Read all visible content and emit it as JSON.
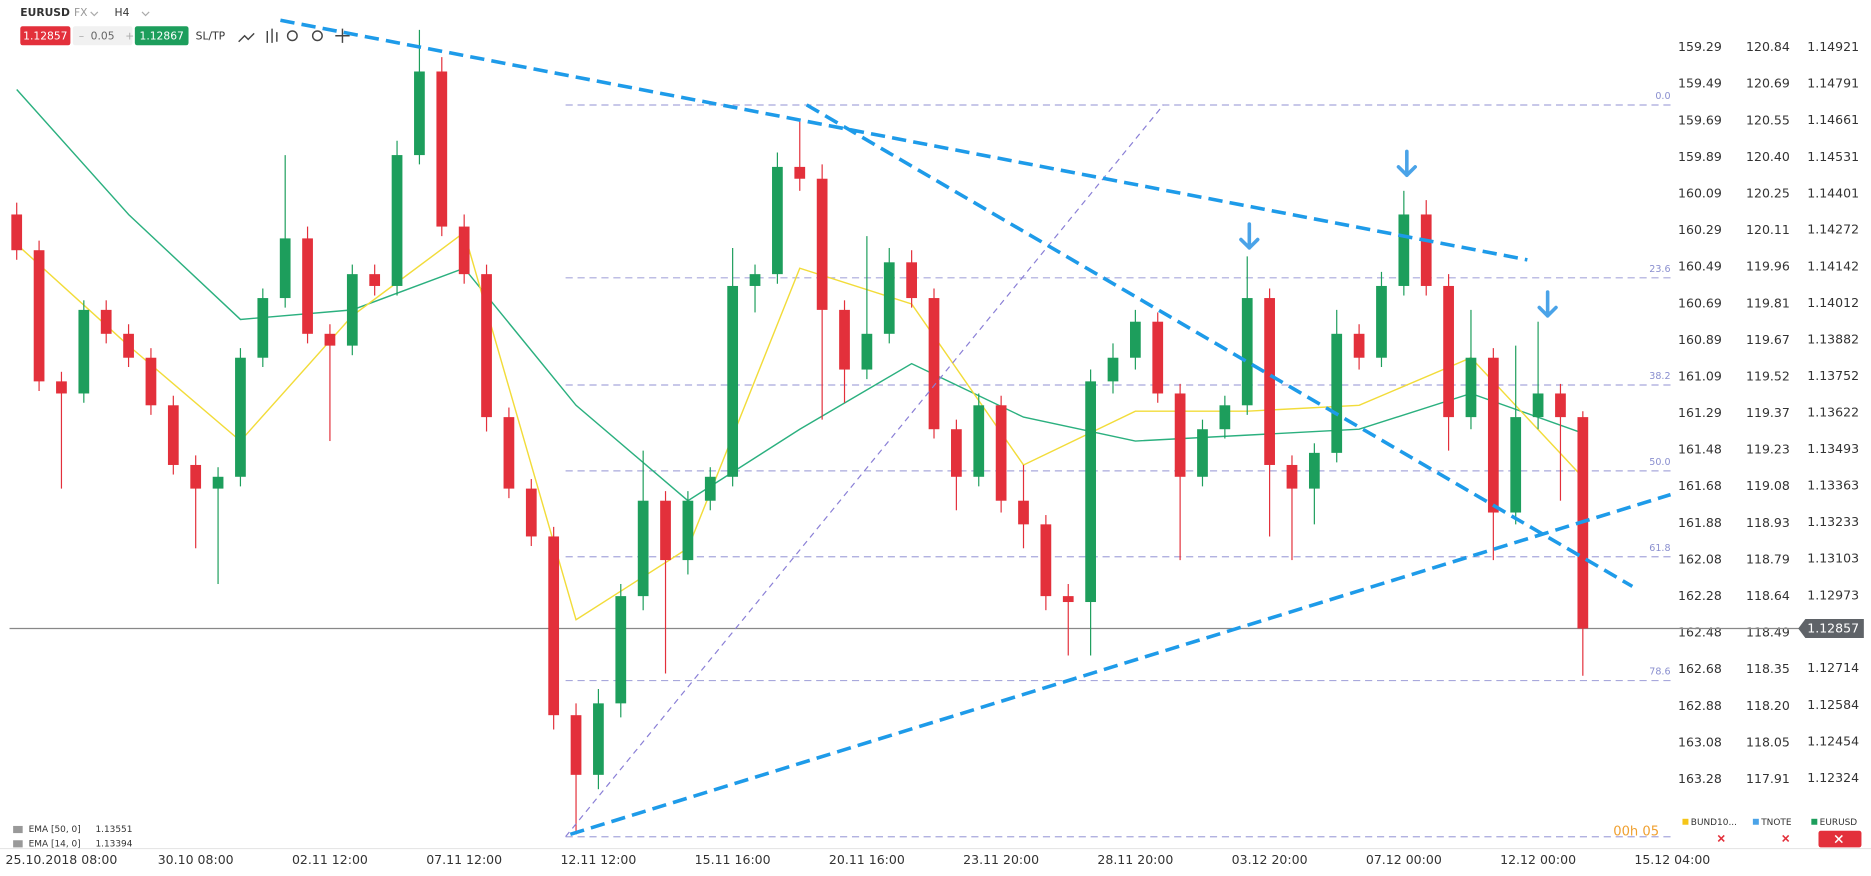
{
  "chart_data": {
    "type": "candlestick",
    "symbol": "EURUSD",
    "market": "FX",
    "timeframe": "H4",
    "current_price": 1.12857,
    "spread": 0.05,
    "ask": 1.12867,
    "sltp": "SL/TP",
    "timer": "00h 05",
    "categories": [
      null,
      null,
      "25.10.2018 08:00",
      null,
      null,
      null,
      null,
      null,
      "30.10 08:00",
      null,
      null,
      null,
      null,
      null,
      "02.11 12:00",
      null,
      null,
      null,
      null,
      null,
      "07.11 12:00",
      null,
      null,
      null,
      null,
      null,
      "12.11 12:00",
      null,
      null,
      null,
      null,
      null,
      "15.11 16:00",
      null,
      null,
      null,
      null,
      null,
      "20.11 16:00",
      null,
      null,
      null,
      null,
      null,
      "23.11 20:00",
      null,
      null,
      null,
      null,
      null,
      "28.11 20:00",
      null,
      null,
      null,
      null,
      null,
      "03.12 20:00",
      null,
      null,
      null,
      null,
      null,
      "07.12 00:00",
      null,
      null,
      null,
      null,
      null,
      "12.12 00:00",
      null,
      null,
      null,
      null,
      null,
      "15.12 04:00"
    ],
    "open": [
      1.14328,
      1.14201,
      1.13735,
      1.13692,
      1.13989,
      1.13904,
      1.13819,
      1.1365,
      1.13438,
      1.13354,
      1.13396,
      1.13819,
      1.14031,
      1.14243,
      1.13904,
      1.13862,
      1.14116,
      1.14074,
      1.14539,
      1.14836,
      1.14285,
      1.14116,
      1.13608,
      1.13354,
      1.13184,
      1.12549,
      1.12337,
      1.12591,
      1.12972,
      1.13311,
      1.131,
      1.13311,
      1.13396,
      1.14074,
      1.14116,
      1.14497,
      1.14455,
      1.13989,
      1.13777,
      1.13904,
      1.14158,
      1.14031,
      1.13565,
      1.13396,
      1.1365,
      1.13311,
      1.13227,
      1.12972,
      1.12951,
      1.13735,
      1.13819,
      1.13947,
      1.13692,
      1.13396,
      1.13565,
      1.1365,
      1.14031,
      1.13438,
      1.13354,
      1.13481,
      1.13904,
      1.13819,
      1.14074,
      1.14328,
      1.14074,
      1.13608,
      1.13819,
      1.13269,
      1.13608,
      1.13692,
      1.13608,
      null,
      null,
      null,
      null
    ],
    "high": [
      1.1437,
      1.14235,
      1.13769,
      1.14023,
      1.14023,
      1.13938,
      1.13853,
      1.13684,
      1.13472,
      1.1343,
      1.13853,
      1.14065,
      1.14539,
      1.14285,
      1.13938,
      1.1415,
      1.1415,
      1.1459,
      1.14984,
      1.14887,
      1.14328,
      1.1415,
      1.13642,
      1.13388,
      1.13218,
      1.12591,
      1.12642,
      1.13015,
      1.13489,
      1.13345,
      1.13345,
      1.1343,
      1.14209,
      1.1415,
      1.14548,
      1.14667,
      1.14506,
      1.14023,
      1.14251,
      1.14209,
      1.14201,
      1.14065,
      1.13599,
      1.13692,
      1.13684,
      1.13438,
      1.1326,
      1.13015,
      1.13777,
      1.1387,
      1.13989,
      1.1398,
      1.13726,
      1.13599,
      1.13684,
      1.14179,
      1.14065,
      1.13472,
      1.13515,
      1.13989,
      1.13938,
      1.14124,
      1.14412,
      1.14379,
      1.14116,
      1.13989,
      1.13853,
      1.13862,
      1.13947,
      1.13726,
      1.13629,
      null,
      null,
      null,
      null
    ],
    "low": [
      1.14167,
      1.13701,
      1.13354,
      1.13659,
      1.1387,
      1.13786,
      1.13616,
      1.13404,
      1.13142,
      1.13015,
      1.13362,
      1.13786,
      1.13997,
      1.1387,
      1.13523,
      1.13828,
      1.1404,
      1.1404,
      1.14506,
      1.14251,
      1.14082,
      1.13557,
      1.1332,
      1.1315,
      1.12498,
      1.12125,
      1.12286,
      1.12541,
      1.12922,
      1.12697,
      1.13049,
      1.13277,
      1.13362,
      1.1398,
      1.14082,
      1.14412,
      1.13599,
      1.13659,
      1.13743,
      1.1387,
      1.13997,
      1.13532,
      1.13277,
      1.13362,
      1.13269,
      1.13142,
      1.12922,
      1.12761,
      1.12761,
      1.13692,
      1.13777,
      1.13659,
      1.131,
      1.13362,
      1.13532,
      1.13616,
      1.13184,
      1.131,
      1.13227,
      1.13447,
      1.13777,
      1.13786,
      1.1404,
      1.1404,
      1.13489,
      1.13565,
      1.131,
      1.13227,
      1.13565,
      1.13311,
      1.12689,
      null,
      null,
      null,
      null
    ],
    "close": [
      1.14201,
      1.13735,
      1.13692,
      1.13989,
      1.13904,
      1.13819,
      1.1365,
      1.13438,
      1.13354,
      1.13396,
      1.13819,
      1.14031,
      1.14243,
      1.13904,
      1.13862,
      1.14116,
      1.14074,
      1.14539,
      1.14836,
      1.14285,
      1.14116,
      1.13608,
      1.13354,
      1.13184,
      1.12549,
      1.12337,
      1.12591,
      1.12972,
      1.13311,
      1.131,
      1.13311,
      1.13396,
      1.14074,
      1.14116,
      1.14497,
      1.14455,
      1.13989,
      1.13777,
      1.13904,
      1.14158,
      1.14031,
      1.13565,
      1.13396,
      1.1365,
      1.13311,
      1.13227,
      1.12972,
      1.12951,
      1.13735,
      1.13819,
      1.13947,
      1.13692,
      1.13396,
      1.13565,
      1.1365,
      1.14031,
      1.13438,
      1.13354,
      1.13481,
      1.13904,
      1.13819,
      1.14074,
      1.14328,
      1.14074,
      1.13608,
      1.13819,
      1.13269,
      1.13608,
      1.13692,
      1.13608,
      1.12857,
      null,
      null,
      null,
      null
    ],
    "up_color": "#1d9e5c",
    "down_color": "#e3303b",
    "ylim": [
      1.12075,
      1.1509
    ],
    "yticks": [
      1.14921,
      1.14791,
      1.14661,
      1.14531,
      1.14401,
      1.14272,
      1.14142,
      1.14012,
      1.13882,
      1.13752,
      1.13622,
      1.13493,
      1.13363,
      1.13233,
      1.13103,
      1.12973,
      1.12714,
      1.12584,
      1.12454,
      1.12324
    ],
    "right_axes": [
      {
        "name": "BUND10...",
        "color": "#f5c518",
        "labels": [
          "159.29",
          "159.49",
          "159.69",
          "159.89",
          "160.09",
          "160.29",
          "160.49",
          "160.69",
          "160.89",
          "161.09",
          "161.29",
          "161.48",
          "161.68",
          "161.88",
          "162.08",
          "162.28",
          "162.48",
          "162.68",
          "162.88",
          "163.08",
          "163.28"
        ]
      },
      {
        "name": "TNOTE",
        "color": "#4aa3e8",
        "labels": [
          "120.84",
          "120.69",
          "120.55",
          "120.40",
          "120.25",
          "120.11",
          "119.96",
          "119.81",
          "119.67",
          "119.52",
          "119.37",
          "119.23",
          "119.08",
          "118.93",
          "118.79",
          "118.64",
          "118.49",
          "118.35",
          "118.20",
          "118.05",
          "117.91"
        ]
      },
      {
        "name": "EURUSD",
        "color": "#1d9e5c"
      }
    ],
    "series": [
      {
        "name": "EMA [50, 0]",
        "color": "#2bb07f",
        "x": [
          0,
          5,
          10,
          15,
          20,
          25,
          30,
          35,
          40,
          45,
          50,
          55,
          60,
          65,
          70
        ],
        "values": [
          1.14772,
          1.14328,
          1.13955,
          1.13989,
          1.14137,
          1.1365,
          1.13311,
          1.13565,
          1.13798,
          1.13608,
          1.13523,
          1.13544,
          1.13565,
          1.13692,
          1.13551
        ]
      },
      {
        "name": "EMA [14, 0]",
        "color": "#f2dc3a",
        "x": [
          0,
          5,
          10,
          15,
          20,
          25,
          30,
          35,
          40,
          45,
          50,
          55,
          60,
          65,
          70
        ],
        "values": [
          1.14222,
          1.13862,
          1.13523,
          1.13968,
          1.14264,
          1.12888,
          1.13142,
          1.14137,
          1.1401,
          1.13438,
          1.13629,
          1.13629,
          1.1365,
          1.13819,
          1.13394
        ]
      }
    ],
    "fib_levels": [
      {
        "label": "0.0",
        "value": 1.14717
      },
      {
        "label": "23.6",
        "value": 1.14103
      },
      {
        "label": "38.2",
        "value": 1.13722
      },
      {
        "label": "50.0",
        "value": 1.13417
      },
      {
        "label": "61.8",
        "value": 1.13112
      },
      {
        "label": "78.6",
        "value": 1.12672
      },
      {
        "label": null,
        "value": 1.12117
      }
    ]
  }
}
